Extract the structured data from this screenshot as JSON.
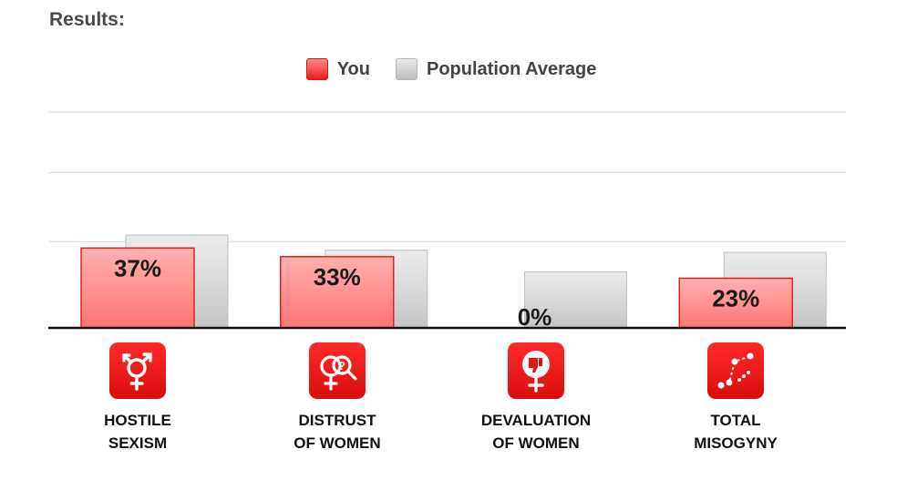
{
  "heading": "Results:",
  "legend": {
    "you": "You",
    "avg": "Population Average"
  },
  "colors": {
    "you_fill": "#ff9090",
    "you_border": "#e02020",
    "avg_fill": "#dcdcdc",
    "avg_border": "#c0c0c0",
    "icon_bg": "#e81414"
  },
  "chart_data": {
    "type": "bar",
    "categories": [
      "HOSTILE SEXISM",
      "DISTRUST OF WOMEN",
      "DEVALUATION OF WOMEN",
      "TOTAL MISOGYNY"
    ],
    "series": [
      {
        "name": "You",
        "values": [
          37,
          33,
          0,
          23
        ]
      },
      {
        "name": "Population Average",
        "values": [
          43,
          36,
          26,
          35
        ]
      }
    ],
    "data_labels": [
      "37%",
      "33%",
      "0%",
      "23%"
    ],
    "ylim": [
      0,
      100
    ],
    "grid": true,
    "legend": "top"
  },
  "categories": [
    {
      "line1": "HOSTILE",
      "line2": "SEXISM",
      "icon": "gender-symbol-icon"
    },
    {
      "line1": "DISTRUST",
      "line2": "OF WOMEN",
      "icon": "magnifier-female-icon"
    },
    {
      "line1": "DEVALUATION",
      "line2": "OF WOMEN",
      "icon": "thumbs-down-female-icon"
    },
    {
      "line1": "TOTAL",
      "line2": "MISOGYNY",
      "icon": "trend-line-icon"
    }
  ]
}
